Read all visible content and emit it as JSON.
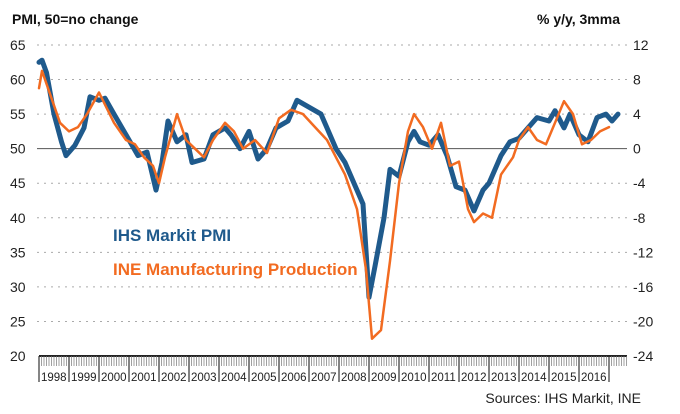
{
  "chart_data": {
    "type": "line",
    "title_left": "PMI, 50=no change",
    "title_right": "% y/y, 3mma",
    "source": "Sources: IHS Markit, INE",
    "left_axis": {
      "min": 20,
      "max": 65,
      "ticks": [
        "65",
        "60",
        "55",
        "50",
        "45",
        "40",
        "35",
        "30",
        "25",
        "20"
      ],
      "tick_values": [
        65,
        60,
        55,
        50,
        45,
        40,
        35,
        30,
        25,
        20
      ],
      "reference": 50
    },
    "right_axis": {
      "min": -24,
      "max": 12,
      "ticks": [
        "12",
        "8",
        "4",
        "0",
        "-4",
        "-8",
        "-12",
        "-16",
        "-20",
        "-24"
      ],
      "tick_values": [
        12,
        8,
        4,
        0,
        -4,
        -8,
        -12,
        -16,
        -20,
        -24
      ]
    },
    "x_axis": {
      "min": 1998,
      "max": 2017.4,
      "labels": [
        "1998",
        "1999",
        "2000",
        "2001",
        "2002",
        "2003",
        "2004",
        "2005",
        "2006",
        "2007",
        "2008",
        "2009",
        "2010",
        "2011",
        "2012",
        "2013",
        "2014",
        "2015",
        "2016"
      ]
    },
    "grid": true,
    "series": [
      {
        "name": "IHS Markit PMI",
        "axis": "left",
        "color": "#1f5a8c",
        "x": [
          1998.0,
          1998.1,
          1998.25,
          1998.5,
          1998.75,
          1998.9,
          1999.2,
          1999.5,
          1999.7,
          2000.0,
          2000.2,
          2000.5,
          2000.9,
          2001.3,
          2001.6,
          2001.9,
          2002.1,
          2002.3,
          2002.6,
          2002.9,
          2003.1,
          2003.5,
          2003.8,
          2004.2,
          2004.4,
          2004.7,
          2005.0,
          2005.3,
          2005.6,
          2005.9,
          2006.3,
          2006.6,
          2007.0,
          2007.4,
          2007.9,
          2008.2,
          2008.5,
          2008.8,
          2009.0,
          2009.2,
          2009.5,
          2009.7,
          2010.0,
          2010.3,
          2010.5,
          2010.7,
          2011.0,
          2011.3,
          2011.6,
          2011.9,
          2012.2,
          2012.5,
          2012.8,
          2013.0,
          2013.4,
          2013.7,
          2014.0,
          2014.3,
          2014.6,
          2015.0,
          2015.2,
          2015.5,
          2015.7,
          2016.0,
          2016.3,
          2016.6,
          2016.9,
          2017.1,
          2017.3
        ],
        "values": [
          62.5,
          62.8,
          61,
          55,
          51,
          49,
          50.5,
          53,
          57.5,
          57,
          57.3,
          55,
          52,
          49,
          49.5,
          44,
          48,
          54,
          51,
          52,
          48,
          48.5,
          52,
          53,
          52,
          50,
          52.5,
          48.5,
          50,
          53,
          54,
          57,
          56,
          55,
          50,
          48,
          45,
          42,
          28.5,
          33,
          40,
          47,
          46,
          51,
          52.5,
          51,
          50.5,
          52,
          49,
          44.5,
          44,
          41,
          44,
          45,
          49,
          51,
          51.5,
          53,
          54.5,
          54,
          55.5,
          53,
          55,
          52,
          51,
          54.5,
          55,
          54,
          55
        ]
      },
      {
        "name": "INE Manufacturing Production",
        "axis": "right",
        "color": "#f26b21",
        "x": [
          1998.0,
          1998.1,
          1998.4,
          1998.7,
          1999.0,
          1999.3,
          1999.6,
          2000.0,
          2000.5,
          2000.9,
          2001.2,
          2001.5,
          2001.8,
          2002.0,
          2002.2,
          2002.6,
          2002.9,
          2003.2,
          2003.5,
          2003.8,
          2004.2,
          2004.5,
          2004.8,
          2005.2,
          2005.6,
          2006.0,
          2006.4,
          2006.8,
          2007.2,
          2007.6,
          2007.9,
          2008.2,
          2008.6,
          2008.9,
          2009.1,
          2009.4,
          2009.7,
          2010.0,
          2010.3,
          2010.5,
          2010.8,
          2011.1,
          2011.4,
          2011.7,
          2012.0,
          2012.3,
          2012.5,
          2012.8,
          2013.1,
          2013.4,
          2013.8,
          2014.0,
          2014.3,
          2014.6,
          2014.9,
          2015.2,
          2015.5,
          2015.8,
          2016.1,
          2016.4,
          2016.7,
          2017.0
        ],
        "values": [
          7,
          9,
          6,
          3,
          2,
          2.5,
          4,
          6.5,
          3,
          1,
          0.5,
          -1,
          -2,
          -4,
          -1,
          4,
          1,
          0,
          -1,
          1,
          3,
          2,
          0,
          1,
          -0.5,
          3.5,
          4.5,
          4,
          2.5,
          1,
          -1,
          -3,
          -7,
          -14,
          -22,
          -21,
          -13,
          -4,
          2,
          4,
          2.5,
          0,
          3,
          -2,
          -1.5,
          -7,
          -8.5,
          -7.5,
          -8,
          -3,
          -1,
          1,
          2.5,
          1,
          0.5,
          3,
          5.5,
          4,
          0.5,
          1,
          2,
          2.5
        ]
      }
    ]
  }
}
